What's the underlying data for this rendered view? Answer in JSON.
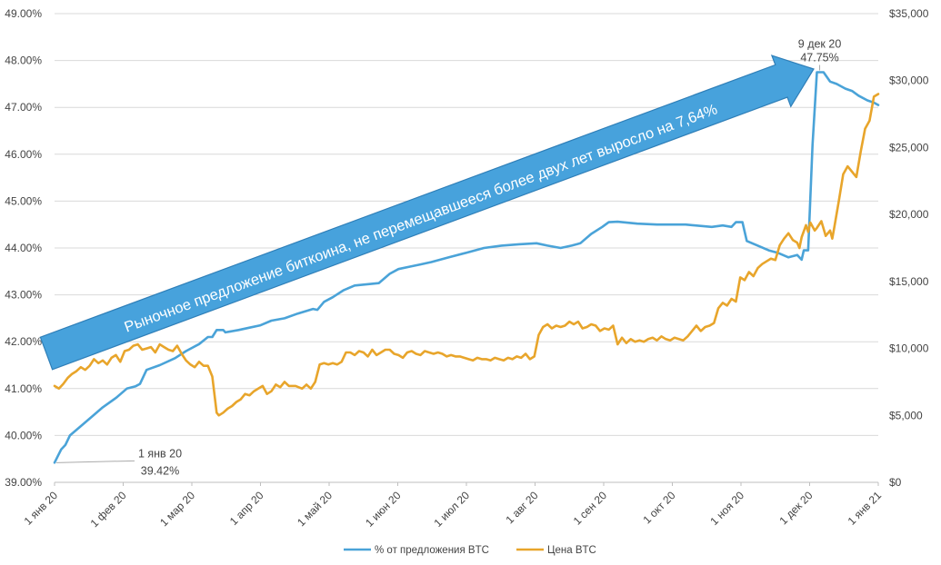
{
  "chart_data": {
    "type": "line",
    "title": "",
    "xlabel": "",
    "ylabel": "",
    "y2label": "",
    "grid": true,
    "legend": "bottom-center",
    "x_ticks": [
      "1 янв 20",
      "1 фев 20",
      "1 мар 20",
      "1 апр 20",
      "1 май 20",
      "1 июн 20",
      "1 июл 20",
      "1 авг 20",
      "1 сен 20",
      "1 окт 20",
      "1 ноя 20",
      "1 дек 20",
      "1 янв 21"
    ],
    "y_left": {
      "min": 39,
      "max": 49,
      "ticks": [
        "39.00%",
        "40.00%",
        "41.00%",
        "42.00%",
        "43.00%",
        "44.00%",
        "45.00%",
        "46.00%",
        "47.00%",
        "48.00%",
        "49.00%"
      ]
    },
    "y_right": {
      "min": 0,
      "max": 35000,
      "ticks": [
        "$0",
        "$5,000",
        "$10,000",
        "$15,000",
        "$20,000",
        "$25,000",
        "$30,000",
        "$35,000"
      ]
    },
    "series": [
      {
        "name": "% от предложения BTC",
        "axis": "left",
        "color": "#4aa3d8",
        "points": [
          [
            0,
            39.42
          ],
          [
            3,
            39.7
          ],
          [
            5,
            39.8
          ],
          [
            7,
            40.0
          ],
          [
            12,
            40.2
          ],
          [
            17,
            40.4
          ],
          [
            22,
            40.6
          ],
          [
            28,
            40.8
          ],
          [
            33,
            41.0
          ],
          [
            37,
            41.05
          ],
          [
            39,
            41.1
          ],
          [
            42,
            41.4
          ],
          [
            48,
            41.5
          ],
          [
            55,
            41.65
          ],
          [
            60,
            41.8
          ],
          [
            66,
            41.95
          ],
          [
            70,
            42.1
          ],
          [
            72,
            42.1
          ],
          [
            74,
            42.25
          ],
          [
            77,
            42.25
          ],
          [
            78,
            42.2
          ],
          [
            84,
            42.25
          ],
          [
            89,
            42.3
          ],
          [
            94,
            42.35
          ],
          [
            99,
            42.45
          ],
          [
            105,
            42.5
          ],
          [
            111,
            42.6
          ],
          [
            118,
            42.7
          ],
          [
            120,
            42.68
          ],
          [
            123,
            42.85
          ],
          [
            127,
            42.95
          ],
          [
            132,
            43.1
          ],
          [
            137,
            43.2
          ],
          [
            148,
            43.25
          ],
          [
            153,
            43.45
          ],
          [
            157,
            43.55
          ],
          [
            162,
            43.6
          ],
          [
            167,
            43.65
          ],
          [
            172,
            43.7
          ],
          [
            180,
            43.8
          ],
          [
            188,
            43.9
          ],
          [
            196,
            44.0
          ],
          [
            204,
            44.05
          ],
          [
            212,
            44.08
          ],
          [
            220,
            44.1
          ],
          [
            225,
            44.05
          ],
          [
            231,
            44.0
          ],
          [
            236,
            44.05
          ],
          [
            240,
            44.1
          ],
          [
            245,
            44.3
          ],
          [
            250,
            44.45
          ],
          [
            253,
            44.55
          ],
          [
            257,
            44.56
          ],
          [
            266,
            44.52
          ],
          [
            275,
            44.5
          ],
          [
            288,
            44.5
          ],
          [
            300,
            44.45
          ],
          [
            305,
            44.48
          ],
          [
            309,
            44.45
          ],
          [
            311,
            44.55
          ],
          [
            314,
            44.55
          ],
          [
            316,
            44.15
          ],
          [
            321,
            44.05
          ],
          [
            326,
            43.95
          ],
          [
            330,
            43.9
          ],
          [
            335,
            43.8
          ],
          [
            339,
            43.85
          ],
          [
            341,
            43.75
          ],
          [
            342,
            43.95
          ],
          [
            344,
            43.95
          ],
          [
            346,
            46.2
          ],
          [
            348,
            47.75
          ],
          [
            351,
            47.75
          ],
          [
            354,
            47.55
          ],
          [
            357,
            47.5
          ],
          [
            361,
            47.4
          ],
          [
            364,
            47.35
          ],
          [
            367,
            47.25
          ],
          [
            371,
            47.15
          ],
          [
            374,
            47.1
          ],
          [
            376,
            47.05
          ]
        ]
      },
      {
        "name": "Цена BTC",
        "axis": "right",
        "color": "#e8a52b",
        "points": [
          [
            0,
            7200
          ],
          [
            2,
            7000
          ],
          [
            4,
            7350
          ],
          [
            6,
            7800
          ],
          [
            8,
            8100
          ],
          [
            10,
            8300
          ],
          [
            12,
            8600
          ],
          [
            14,
            8400
          ],
          [
            16,
            8700
          ],
          [
            18,
            9200
          ],
          [
            20,
            8900
          ],
          [
            22,
            9100
          ],
          [
            24,
            8800
          ],
          [
            26,
            9300
          ],
          [
            28,
            9500
          ],
          [
            30,
            9000
          ],
          [
            32,
            9800
          ],
          [
            34,
            9900
          ],
          [
            36,
            10200
          ],
          [
            38,
            10300
          ],
          [
            40,
            9900
          ],
          [
            42,
            10000
          ],
          [
            44,
            10100
          ],
          [
            46,
            9700
          ],
          [
            48,
            10300
          ],
          [
            50,
            10100
          ],
          [
            52,
            9900
          ],
          [
            54,
            9800
          ],
          [
            56,
            10200
          ],
          [
            58,
            9600
          ],
          [
            60,
            9100
          ],
          [
            62,
            8800
          ],
          [
            64,
            8600
          ],
          [
            66,
            9000
          ],
          [
            68,
            8700
          ],
          [
            70,
            8700
          ],
          [
            72,
            7900
          ],
          [
            74,
            5200
          ],
          [
            75,
            5000
          ],
          [
            77,
            5200
          ],
          [
            79,
            5500
          ],
          [
            81,
            5700
          ],
          [
            83,
            6000
          ],
          [
            85,
            6200
          ],
          [
            87,
            6600
          ],
          [
            89,
            6500
          ],
          [
            91,
            6800
          ],
          [
            93,
            7000
          ],
          [
            95,
            7200
          ],
          [
            97,
            6600
          ],
          [
            99,
            6800
          ],
          [
            101,
            7300
          ],
          [
            103,
            7100
          ],
          [
            105,
            7500
          ],
          [
            107,
            7200
          ],
          [
            110,
            7200
          ],
          [
            113,
            7000
          ],
          [
            115,
            7300
          ],
          [
            117,
            7000
          ],
          [
            119,
            7500
          ],
          [
            121,
            8800
          ],
          [
            123,
            8900
          ],
          [
            125,
            8800
          ],
          [
            127,
            8900
          ],
          [
            129,
            8800
          ],
          [
            131,
            9000
          ],
          [
            133,
            9700
          ],
          [
            135,
            9700
          ],
          [
            137,
            9500
          ],
          [
            139,
            9800
          ],
          [
            141,
            9700
          ],
          [
            143,
            9400
          ],
          [
            145,
            9900
          ],
          [
            147,
            9500
          ],
          [
            149,
            9700
          ],
          [
            151,
            9900
          ],
          [
            153,
            9900
          ],
          [
            155,
            9600
          ],
          [
            157,
            9500
          ],
          [
            159,
            9300
          ],
          [
            161,
            9700
          ],
          [
            163,
            9800
          ],
          [
            165,
            9600
          ],
          [
            167,
            9500
          ],
          [
            169,
            9800
          ],
          [
            171,
            9700
          ],
          [
            173,
            9600
          ],
          [
            175,
            9700
          ],
          [
            177,
            9600
          ],
          [
            179,
            9400
          ],
          [
            181,
            9500
          ],
          [
            183,
            9400
          ],
          [
            185,
            9400
          ],
          [
            187,
            9300
          ],
          [
            189,
            9200
          ],
          [
            191,
            9100
          ],
          [
            193,
            9300
          ],
          [
            195,
            9200
          ],
          [
            197,
            9200
          ],
          [
            199,
            9100
          ],
          [
            201,
            9300
          ],
          [
            203,
            9200
          ],
          [
            205,
            9100
          ],
          [
            207,
            9300
          ],
          [
            209,
            9200
          ],
          [
            211,
            9400
          ],
          [
            213,
            9300
          ],
          [
            215,
            9600
          ],
          [
            217,
            9200
          ],
          [
            219,
            9400
          ],
          [
            221,
            11000
          ],
          [
            223,
            11600
          ],
          [
            225,
            11800
          ],
          [
            227,
            11500
          ],
          [
            229,
            11700
          ],
          [
            231,
            11600
          ],
          [
            233,
            11700
          ],
          [
            235,
            12000
          ],
          [
            237,
            11800
          ],
          [
            239,
            12000
          ],
          [
            241,
            11500
          ],
          [
            243,
            11600
          ],
          [
            245,
            11800
          ],
          [
            247,
            11700
          ],
          [
            249,
            11300
          ],
          [
            251,
            11500
          ],
          [
            253,
            11400
          ],
          [
            255,
            11700
          ],
          [
            257,
            10300
          ],
          [
            259,
            10800
          ],
          [
            261,
            10400
          ],
          [
            263,
            10700
          ],
          [
            265,
            10500
          ],
          [
            267,
            10600
          ],
          [
            269,
            10500
          ],
          [
            271,
            10700
          ],
          [
            273,
            10800
          ],
          [
            275,
            10600
          ],
          [
            277,
            10900
          ],
          [
            279,
            10700
          ],
          [
            281,
            10600
          ],
          [
            283,
            10800
          ],
          [
            285,
            10700
          ],
          [
            287,
            10600
          ],
          [
            289,
            10900
          ],
          [
            291,
            11300
          ],
          [
            293,
            11700
          ],
          [
            295,
            11300
          ],
          [
            297,
            11600
          ],
          [
            299,
            11700
          ],
          [
            301,
            11900
          ],
          [
            303,
            13000
          ],
          [
            305,
            13400
          ],
          [
            307,
            13200
          ],
          [
            309,
            13700
          ],
          [
            311,
            13500
          ],
          [
            313,
            15300
          ],
          [
            315,
            15100
          ],
          [
            317,
            15700
          ],
          [
            319,
            15400
          ],
          [
            321,
            16000
          ],
          [
            323,
            16300
          ],
          [
            325,
            16500
          ],
          [
            327,
            16700
          ],
          [
            329,
            16600
          ],
          [
            331,
            17700
          ],
          [
            333,
            18200
          ],
          [
            335,
            18600
          ],
          [
            337,
            18100
          ],
          [
            339,
            17900
          ],
          [
            340,
            17500
          ],
          [
            341,
            18300
          ],
          [
            343,
            19200
          ],
          [
            344,
            18700
          ],
          [
            345,
            19400
          ],
          [
            347,
            18800
          ],
          [
            348,
            19000
          ],
          [
            350,
            19500
          ],
          [
            352,
            18400
          ],
          [
            354,
            18800
          ],
          [
            355,
            18200
          ],
          [
            356,
            19100
          ],
          [
            358,
            21000
          ],
          [
            360,
            23000
          ],
          [
            362,
            23600
          ],
          [
            364,
            23200
          ],
          [
            366,
            22800
          ],
          [
            368,
            24700
          ],
          [
            370,
            26400
          ],
          [
            372,
            27000
          ],
          [
            374,
            28800
          ],
          [
            376,
            29000
          ]
        ]
      }
    ],
    "annotations": {
      "start_label_date": "1 янв 20",
      "start_label_value": "39.42%",
      "peak_label_date": "9 дек 20",
      "peak_label_value": "47.75%",
      "arrow_text": "Рыночное предложение биткоина, не перемещавшееся более двух лет выросло на 7,64%"
    }
  }
}
